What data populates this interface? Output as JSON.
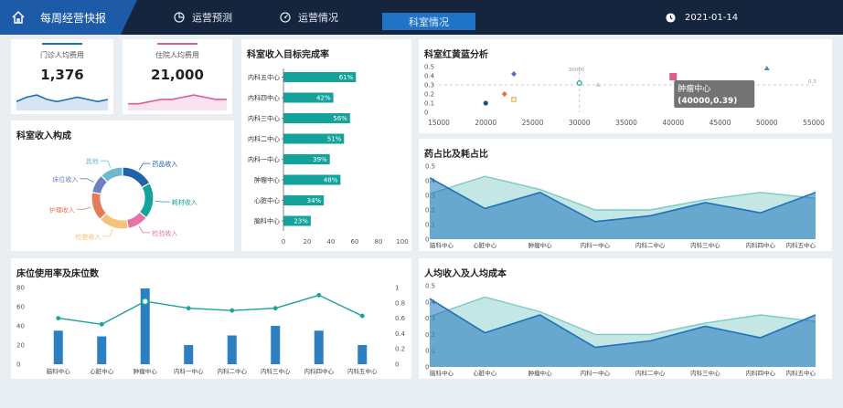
{
  "header": {
    "title": "每周经营快报",
    "nav": [
      {
        "label": "运营预测",
        "icon": "pie-chart-icon"
      },
      {
        "label": "运营情况",
        "icon": "gauge-icon"
      },
      {
        "label": "科室情况",
        "active": true
      }
    ],
    "date": "2021-01-14",
    "colors": {
      "bar": "#15253e",
      "brand": "#1d5aa8",
      "active_tab": "#1f74c7"
    }
  },
  "kpis": [
    {
      "label": "门诊人均费用",
      "value": "1,376",
      "color": "#1f6fb8"
    },
    {
      "label": "住院人均费用",
      "value": "21,000",
      "color": "#d6609a"
    }
  ],
  "cards": {
    "dept_revenue_composition": "科室收入构成",
    "dept_target_completion": "科室收入目标完成率",
    "dept_rgb_analysis": "科室红黄蓝分析",
    "drug_consumable_ratio": "药占比及耗占比",
    "bed_usage": "床位使用率及床位数",
    "per_capita_income_cost": "人均收入及人均成本"
  },
  "chart_data": [
    {
      "id": "kpi-outpatient-spark",
      "type": "area",
      "x": [
        1,
        2,
        3,
        4,
        5,
        6,
        7,
        8,
        9,
        10
      ],
      "values": [
        4,
        6,
        7,
        5,
        4,
        5,
        6,
        5,
        4,
        5
      ]
    },
    {
      "id": "kpi-inpatient-spark",
      "type": "area",
      "x": [
        1,
        2,
        3,
        4,
        5,
        6,
        7,
        8,
        9,
        10
      ],
      "values": [
        3,
        3,
        4,
        5,
        5,
        6,
        7,
        6,
        5,
        5
      ]
    },
    {
      "id": "revenue-composition",
      "type": "pie",
      "title": "科室收入构成",
      "labels": [
        "药品收入",
        "耗材收入",
        "检验收入",
        "检查收入",
        "护理收入",
        "床位收入",
        "其他"
      ],
      "values": [
        17,
        19,
        11,
        16,
        15,
        10,
        12
      ],
      "colors": [
        "#1f64aa",
        "#14a39a",
        "#e374a5",
        "#f5c27c",
        "#e57a5a",
        "#6e7fc2",
        "#6fb8d2"
      ]
    },
    {
      "id": "target-completion",
      "type": "bar",
      "orientation": "horizontal",
      "title": "科室收入目标完成率",
      "categories": [
        "内科五中心",
        "内科四中心",
        "内科三中心",
        "内科二中心",
        "内科一中心",
        "肿瘤中心",
        "心脏中心",
        "脑科中心"
      ],
      "values": [
        61,
        42,
        56,
        51,
        39,
        48,
        34,
        23
      ],
      "value_labels": [
        "61%",
        "42%",
        "56%",
        "51%",
        "39%",
        "48%",
        "34%",
        "23%"
      ],
      "xticks": [
        "0",
        "20",
        "40",
        "60",
        "80",
        "100"
      ],
      "xlim": [
        0,
        100
      ]
    },
    {
      "id": "rgb-analysis",
      "type": "scatter",
      "title": "科室红黄蓝分析",
      "xticks": [
        "15000",
        "20000",
        "25000",
        "30000",
        "35000",
        "40000",
        "45000",
        "50000",
        "55000"
      ],
      "yticks": [
        "0",
        "0.1",
        "0.2",
        "0.3",
        "0.4",
        "0.5"
      ],
      "xlim": [
        15000,
        55000
      ],
      "ylim": [
        0,
        0.5
      ],
      "reference_lines": {
        "x": 30000,
        "y": 0.3,
        "x_label": "30000",
        "y_label": "0.3"
      },
      "points": [
        {
          "x": 20000,
          "y": 0.1,
          "color": "#1f4e85",
          "shape": "circle"
        },
        {
          "x": 22000,
          "y": 0.2,
          "color": "#e76f3c",
          "shape": "diamond"
        },
        {
          "x": 23000,
          "y": 0.42,
          "color": "#5a6fc1",
          "shape": "diamond"
        },
        {
          "x": 23000,
          "y": 0.14,
          "color": "#f3a63b",
          "shape": "square-open"
        },
        {
          "x": 30000,
          "y": 0.32,
          "color": "#18a59a",
          "shape": "circle-open"
        },
        {
          "x": 32000,
          "y": 0.3,
          "color": "#c9cfd6",
          "shape": "triangle"
        },
        {
          "x": 40000,
          "y": 0.39,
          "color": "#e05a8a",
          "shape": "square"
        },
        {
          "x": 50000,
          "y": 0.48,
          "color": "#3b8fd6",
          "shape": "triangle"
        }
      ],
      "tooltip": {
        "title": "肿瘤中心",
        "value": "(40000,0.39)",
        "point": 6
      }
    },
    {
      "id": "drug-ratio",
      "type": "area",
      "title": "药占比及耗占比",
      "categories": [
        "脑科中心",
        "心脏中心",
        "肿瘤中心",
        "内科一中心",
        "内科二中心",
        "内科三中心",
        "内科四中心",
        "内科五中心"
      ],
      "yticks": [
        "0",
        "0.1",
        "0.2",
        "0.3",
        "0.4",
        "0.5"
      ],
      "ylim": [
        0,
        0.5
      ],
      "series": [
        {
          "values": [
            0.31,
            0.43,
            0.34,
            0.2,
            0.2,
            0.27,
            0.32,
            0.28
          ],
          "color": "#7cc9c5"
        },
        {
          "values": [
            0.42,
            0.21,
            0.32,
            0.12,
            0.16,
            0.25,
            0.18,
            0.32
          ],
          "color": "#1d72bc"
        }
      ]
    },
    {
      "id": "bed-usage",
      "type": "bar",
      "title": "床位使用率及床位数",
      "categories": [
        "脑科中心",
        "心脏中心",
        "肿瘤中心",
        "内科一中心",
        "内科二中心",
        "内科三中心",
        "内科四中心",
        "内科五中心"
      ],
      "yticks_left": [
        "0",
        "20",
        "40",
        "60",
        "80"
      ],
      "ylim_left": [
        0,
        80
      ],
      "yticks_right": [
        "0",
        "0.2",
        "0.4",
        "0.6",
        "0.8",
        "1"
      ],
      "ylim_right": [
        0,
        1
      ],
      "series": [
        {
          "kind": "bar",
          "axis": "left",
          "values": [
            35,
            29,
            79,
            20,
            30,
            40,
            35,
            20
          ],
          "color": "#2c7fc0"
        },
        {
          "kind": "line",
          "axis": "right",
          "values": [
            0.6,
            0.52,
            0.82,
            0.73,
            0.7,
            0.73,
            0.9,
            0.63
          ],
          "color": "#1aa39b",
          "highlight_index": 2
        }
      ]
    },
    {
      "id": "per-capita",
      "type": "area",
      "title": "人均收入及人均成本",
      "categories": [
        "脑科中心",
        "心脏中心",
        "肿瘤中心",
        "内科一中心",
        "内科二中心",
        "内科三中心",
        "内科四中心",
        "内科五中心"
      ],
      "yticks": [
        "0",
        "0.1",
        "0.2",
        "0.3",
        "0.4",
        "0.5"
      ],
      "ylim": [
        0,
        0.5
      ],
      "series": [
        {
          "values": [
            0.31,
            0.43,
            0.34,
            0.2,
            0.2,
            0.27,
            0.32,
            0.28
          ],
          "color": "#7cc9c5"
        },
        {
          "values": [
            0.42,
            0.21,
            0.32,
            0.12,
            0.16,
            0.25,
            0.18,
            0.32
          ],
          "color": "#1d72bc"
        }
      ]
    }
  ]
}
